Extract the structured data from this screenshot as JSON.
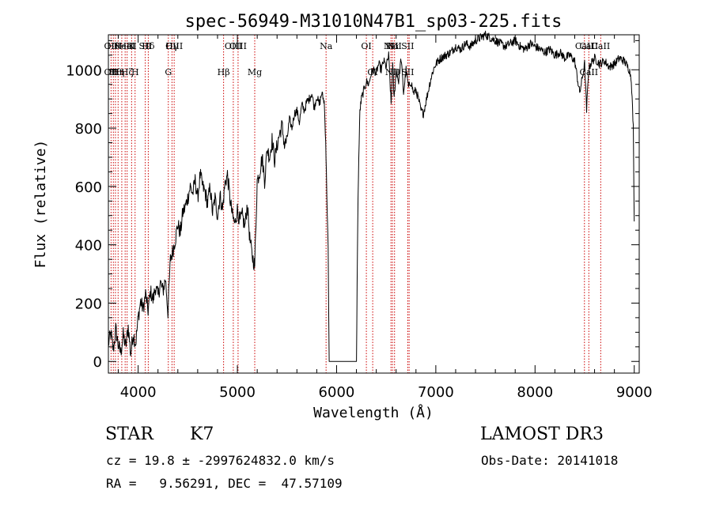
{
  "chart_data": {
    "type": "line",
    "title": "spec-56949-M31010N47B1_sp03-225.fits",
    "xlabel": "Wavelength (Å)",
    "ylabel": "Flux (relative)",
    "xlim": [
      3700,
      9050
    ],
    "ylim": [
      -40,
      1120
    ],
    "xticks": [
      4000,
      5000,
      6000,
      7000,
      8000,
      9000
    ],
    "yticks": [
      0,
      200,
      400,
      600,
      800,
      1000
    ],
    "line_color": "#000000",
    "marker_color": "#cc0000",
    "series": [
      {
        "x": [
          3700,
          3725,
          3750,
          3775,
          3800,
          3825,
          3850,
          3875,
          3900,
          3925,
          3950,
          3975,
          4000,
          4025,
          4050,
          4075,
          4100,
          4125,
          4150,
          4175,
          4200,
          4225,
          4250,
          4275,
          4300,
          4325,
          4350,
          4375,
          4400,
          4425,
          4450,
          4475,
          4500,
          4525,
          4550,
          4575,
          4600,
          4625,
          4650,
          4675,
          4700,
          4725,
          4750,
          4775,
          4800,
          4825,
          4850,
          4875,
          4900,
          4925,
          4950,
          4975,
          5000,
          5025,
          5050,
          5075,
          5100,
          5125,
          5150,
          5175,
          5200,
          5225,
          5250,
          5275,
          5300,
          5325,
          5350,
          5375,
          5400,
          5425,
          5450,
          5475,
          5500,
          5525,
          5550,
          5575,
          5600,
          5625,
          5650,
          5675,
          5700,
          5725,
          5750,
          5775,
          5800,
          5825,
          5850,
          5875,
          5890,
          5905,
          5915,
          5925,
          6050,
          6150,
          6200,
          6210,
          6220,
          6235,
          6250,
          6275,
          6300,
          6325,
          6350,
          6375,
          6400,
          6425,
          6450,
          6475,
          6500,
          6525,
          6550,
          6565,
          6580,
          6600,
          6625,
          6650,
          6675,
          6700,
          6725,
          6750,
          6775,
          6800,
          6825,
          6850,
          6875,
          6900,
          6925,
          6950,
          6975,
          7000,
          7050,
          7100,
          7150,
          7200,
          7250,
          7300,
          7350,
          7400,
          7450,
          7500,
          7550,
          7600,
          7650,
          7700,
          7750,
          7800,
          7850,
          7900,
          7950,
          8000,
          8050,
          8100,
          8150,
          8200,
          8250,
          8300,
          8350,
          8400,
          8450,
          8500,
          8520,
          8540,
          8560,
          8600,
          8650,
          8700,
          8750,
          8800,
          8850,
          8900,
          8950,
          8970,
          8990,
          9000
        ],
        "values": [
          60,
          95,
          40,
          110,
          55,
          30,
          90,
          50,
          120,
          25,
          95,
          60,
          150,
          205,
          180,
          230,
          175,
          240,
          210,
          255,
          225,
          270,
          240,
          285,
          170,
          350,
          380,
          420,
          470,
          440,
          510,
          530,
          560,
          600,
          575,
          620,
          560,
          640,
          600,
          580,
          540,
          600,
          510,
          560,
          500,
          570,
          520,
          610,
          640,
          560,
          500,
          470,
          520,
          480,
          500,
          460,
          540,
          420,
          360,
          330,
          620,
          650,
          700,
          620,
          730,
          700,
          760,
          690,
          740,
          780,
          810,
          740,
          760,
          830,
          800,
          850,
          860,
          820,
          880,
          860,
          890,
          900,
          920,
          870,
          910,
          880,
          920,
          890,
          760,
          520,
          380,
          0,
          0,
          0,
          0,
          380,
          640,
          860,
          900,
          930,
          960,
          950,
          990,
          1000,
          990,
          1020,
          1000,
          1030,
          1010,
          1050,
          880,
          1020,
          900,
          1000,
          960,
          1040,
          920,
          1000,
          940,
          960,
          920,
          930,
          900,
          860,
          850,
          890,
          930,
          970,
          1000,
          1020,
          1040,
          1050,
          1060,
          1080,
          1070,
          1090,
          1080,
          1100,
          1110,
          1120,
          1110,
          1100,
          1090,
          1080,
          1090,
          1100,
          1080,
          1070,
          1090,
          1080,
          1070,
          1060,
          1070,
          1050,
          1060,
          1040,
          1050,
          1030,
          920,
          1020,
          860,
          1000,
          1020,
          1040,
          1020,
          1030,
          1010,
          1020,
          1040,
          1030,
          1000,
          970,
          800,
          480
        ]
      }
    ],
    "line_markers": [
      {
        "wave": 3727,
        "top": "OII",
        "bottom": "OII"
      },
      {
        "wave": 3750,
        "top": "Hθ",
        "bottom": ""
      },
      {
        "wave": 3771,
        "top": "",
        "bottom": "Hθ"
      },
      {
        "wave": 3798,
        "top": "",
        "bottom": "Hη"
      },
      {
        "wave": 3835,
        "top": "",
        "bottom": ""
      },
      {
        "wave": 3869,
        "top": "NeIII",
        "bottom": ""
      },
      {
        "wave": 3889,
        "top": "HeI",
        "bottom": "Hζ"
      },
      {
        "wave": 3934,
        "top": "K",
        "bottom": ""
      },
      {
        "wave": 3969,
        "top": "",
        "bottom": "H"
      },
      {
        "wave": 4072,
        "top": "SII",
        "bottom": ""
      },
      {
        "wave": 4102,
        "top": "Hδ",
        "bottom": ""
      },
      {
        "wave": 4304,
        "top": "",
        "bottom": "G"
      },
      {
        "wave": 4341,
        "top": "Hγ",
        "bottom": ""
      },
      {
        "wave": 4363,
        "top": "OIII",
        "bottom": ""
      },
      {
        "wave": 4861,
        "top": "",
        "bottom": "Hβ"
      },
      {
        "wave": 4959,
        "top": "OIII",
        "bottom": ""
      },
      {
        "wave": 5007,
        "top": "OIII",
        "bottom": ""
      },
      {
        "wave": 5175,
        "top": "",
        "bottom": "Mg"
      },
      {
        "wave": 5894,
        "top": "Na",
        "bottom": ""
      },
      {
        "wave": 6300,
        "top": "OI",
        "bottom": ""
      },
      {
        "wave": 6364,
        "top": "",
        "bottom": "OI"
      },
      {
        "wave": 6548,
        "top": "NII",
        "bottom": ""
      },
      {
        "wave": 6563,
        "top": "Hα",
        "bottom": "NII"
      },
      {
        "wave": 6584,
        "top": "NII",
        "bottom": ""
      },
      {
        "wave": 6717,
        "top": "SII",
        "bottom": "SII"
      },
      {
        "wave": 6731,
        "top": "",
        "bottom": ""
      },
      {
        "wave": 8498,
        "top": "CaII",
        "bottom": ""
      },
      {
        "wave": 8542,
        "top": "CaII",
        "bottom": "CaII"
      },
      {
        "wave": 8662,
        "top": "CaII",
        "bottom": ""
      }
    ]
  },
  "info": {
    "class_label": "STAR",
    "subclass_label": "K7",
    "survey_label": "LAMOST DR3",
    "velocity_text": "cz = 19.8 ± -2997624832.0 km/s",
    "obs_date_text": "Obs-Date: 20141018",
    "coords_text": "RA =   9.56291, DEC =  47.57109"
  }
}
